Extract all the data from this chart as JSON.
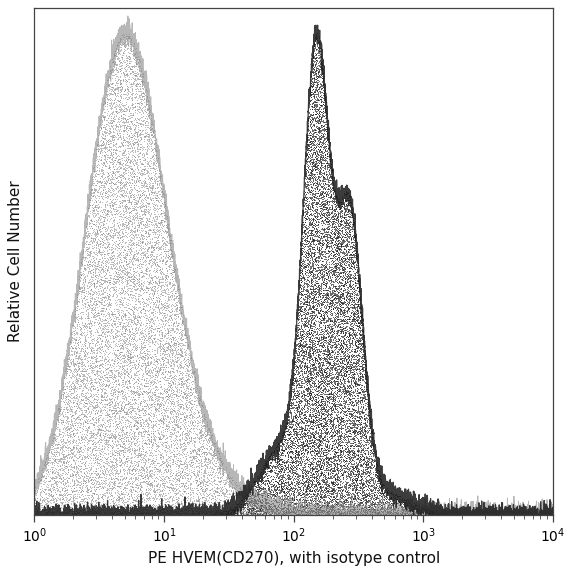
{
  "xlabel": "PE HVEM(CD270), with isotype control",
  "ylabel": "Relative Cell Number",
  "xlim_log": [
    1,
    10000
  ],
  "ylim": [
    0,
    1.05
  ],
  "background_color": "#ffffff",
  "isotype_color": "#888888",
  "antibody_color": "#1a1a1a",
  "noise_seed": 42,
  "fig_width": 5.74,
  "fig_height": 5.74,
  "dpi": 100
}
